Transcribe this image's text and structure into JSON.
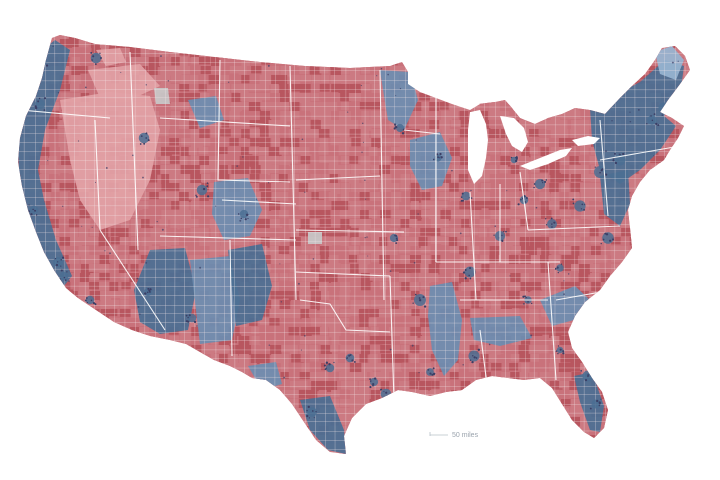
{
  "map": {
    "scale_label": "50 miles",
    "colors": {
      "background": "#ffffff",
      "land_base": "#c9727b",
      "red_dark": "#b8565f",
      "red_medium": "#cc7a82",
      "red_light": "#e2a1a6",
      "blue_dark": "#4b6f93",
      "blue_medium": "#6d8db0",
      "blue_light": "#97b4d1",
      "neutral_gray": "#c8c8c8",
      "county_lines": "#f5e8e9",
      "state_lines": "#ffffff",
      "city_dots": "#3b3f66"
    }
  }
}
